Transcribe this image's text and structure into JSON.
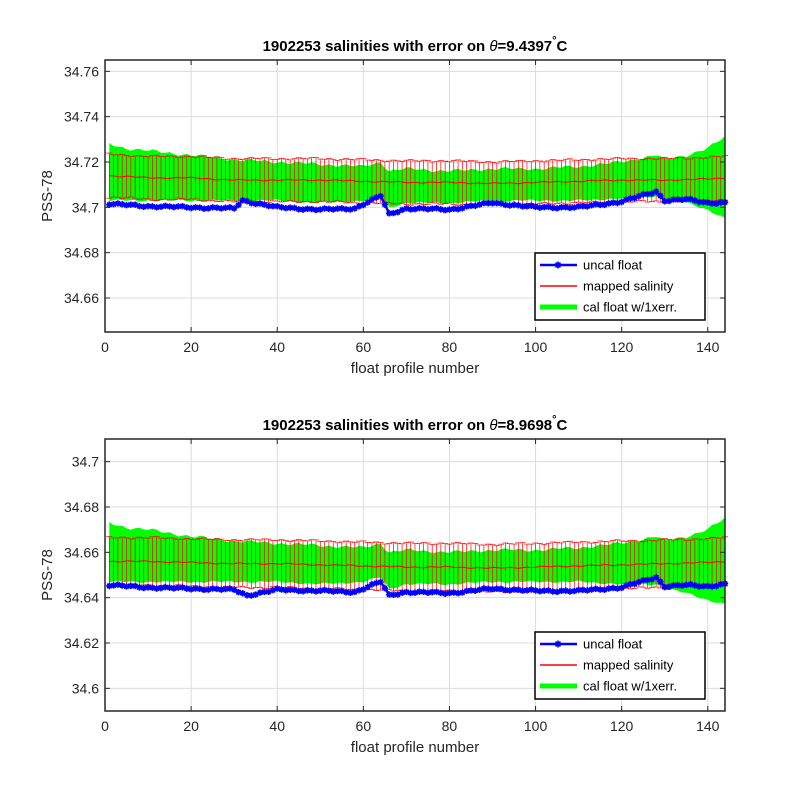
{
  "chart_data": [
    {
      "type": "line",
      "title_prefix": "1902253 salinities with error on ",
      "title_symbol": "θ",
      "title_value": "=9.4397",
      "title_degree": "°",
      "title_unit": "C",
      "xlabel": "float profile number",
      "ylabel": "PSS-78",
      "xlim": [
        0,
        144
      ],
      "ylim": [
        34.645,
        34.765
      ],
      "xticks": [
        0,
        20,
        40,
        60,
        80,
        100,
        120,
        140
      ],
      "yticks": [
        34.66,
        34.68,
        34.7,
        34.72,
        34.74,
        34.76
      ],
      "ytick_labels": [
        "34.66",
        "34.68",
        "34.7",
        "34.72",
        "34.74",
        "34.76"
      ],
      "grid": true,
      "legend_position": "lower-right",
      "legend": [
        {
          "label": "uncal float",
          "color": "#0000ff"
        },
        {
          "label": "mapped salinity",
          "color": "#ff0000"
        },
        {
          "label": "cal float w/1xerr.",
          "color": "#00ff00"
        }
      ],
      "series": [
        {
          "name": "uncal float",
          "color": "#0000ff",
          "x": [
            1,
            10,
            20,
            30,
            32,
            40,
            50,
            58,
            64,
            66,
            70,
            80,
            90,
            100,
            110,
            120,
            128,
            130,
            135,
            140,
            144
          ],
          "values": [
            34.7015,
            34.7005,
            34.7,
            34.6995,
            34.703,
            34.7,
            34.699,
            34.6995,
            34.705,
            34.697,
            34.6995,
            34.699,
            34.702,
            34.7,
            34.7,
            34.7025,
            34.707,
            34.703,
            34.7035,
            34.702,
            34.702
          ]
        },
        {
          "name": "mapped salinity",
          "color": "#ff0000",
          "x": [
            1,
            10,
            20,
            30,
            40,
            50,
            60,
            70,
            80,
            90,
            100,
            110,
            120,
            130,
            140,
            144
          ],
          "values": [
            34.714,
            34.713,
            34.713,
            34.712,
            34.712,
            34.712,
            34.7115,
            34.711,
            34.711,
            34.7105,
            34.711,
            34.7115,
            34.712,
            34.712,
            34.7125,
            34.713
          ],
          "error": 0.0095
        },
        {
          "name": "cal float w/1xerr.",
          "color": "#00ff00",
          "x": [
            1,
            5,
            10,
            20,
            30,
            40,
            50,
            60,
            64,
            66,
            70,
            80,
            90,
            100,
            110,
            120,
            128,
            130,
            135,
            140,
            144
          ],
          "upper": [
            34.728,
            34.726,
            34.725,
            34.723,
            34.721,
            34.72,
            34.719,
            34.718,
            34.72,
            34.716,
            34.717,
            34.716,
            34.717,
            34.717,
            34.718,
            34.72,
            34.723,
            34.721,
            34.723,
            34.726,
            34.731
          ],
          "lower": [
            34.703,
            34.703,
            34.703,
            34.703,
            34.703,
            34.703,
            34.702,
            34.703,
            34.705,
            34.7,
            34.702,
            34.702,
            34.703,
            34.703,
            34.703,
            34.704,
            34.705,
            34.703,
            34.702,
            34.699,
            34.695
          ]
        }
      ]
    },
    {
      "type": "line",
      "title_prefix": "1902253 salinities with error on ",
      "title_symbol": "θ",
      "title_value": "=8.9698",
      "title_degree": "°",
      "title_unit": "C",
      "xlabel": "float profile number",
      "ylabel": "PSS-78",
      "xlim": [
        0,
        144
      ],
      "ylim": [
        34.59,
        34.71
      ],
      "xticks": [
        0,
        20,
        40,
        60,
        80,
        100,
        120,
        140
      ],
      "yticks": [
        34.6,
        34.62,
        34.64,
        34.66,
        34.68,
        34.7
      ],
      "ytick_labels": [
        "34.6",
        "34.62",
        "34.64",
        "34.66",
        "34.68",
        "34.7"
      ],
      "grid": true,
      "legend_position": "lower-right",
      "legend": [
        {
          "label": "uncal float",
          "color": "#0000ff"
        },
        {
          "label": "mapped salinity",
          "color": "#ff0000"
        },
        {
          "label": "cal float w/1xerr.",
          "color": "#00ff00"
        }
      ],
      "series": [
        {
          "name": "uncal float",
          "color": "#0000ff",
          "x": [
            1,
            10,
            20,
            30,
            33,
            40,
            50,
            58,
            64,
            66,
            70,
            80,
            90,
            100,
            110,
            120,
            128,
            130,
            135,
            140,
            144
          ],
          "values": [
            34.6455,
            34.6445,
            34.644,
            34.6435,
            34.641,
            34.6435,
            34.643,
            34.6425,
            34.647,
            34.641,
            34.6425,
            34.642,
            34.644,
            34.643,
            34.643,
            34.6445,
            34.649,
            34.645,
            34.6455,
            34.645,
            34.646
          ]
        },
        {
          "name": "mapped salinity",
          "color": "#ff0000",
          "x": [
            1,
            10,
            20,
            30,
            40,
            50,
            60,
            70,
            80,
            90,
            100,
            110,
            120,
            130,
            140,
            144
          ],
          "values": [
            34.656,
            34.656,
            34.6555,
            34.655,
            34.655,
            34.6545,
            34.654,
            34.6535,
            34.6535,
            34.653,
            34.6535,
            34.654,
            34.6545,
            34.655,
            34.6555,
            34.656
          ],
          "error": 0.0105
        },
        {
          "name": "cal float w/1xerr.",
          "color": "#00ff00",
          "x": [
            1,
            5,
            10,
            20,
            30,
            40,
            50,
            60,
            64,
            66,
            70,
            80,
            90,
            100,
            110,
            120,
            128,
            130,
            135,
            140,
            144
          ],
          "upper": [
            34.673,
            34.671,
            34.67,
            34.667,
            34.665,
            34.664,
            34.663,
            34.662,
            34.664,
            34.66,
            34.661,
            34.66,
            34.661,
            34.661,
            34.662,
            34.664,
            34.667,
            34.665,
            34.667,
            34.67,
            34.675
          ],
          "lower": [
            34.647,
            34.647,
            34.647,
            34.647,
            34.647,
            34.647,
            34.646,
            34.647,
            34.649,
            34.644,
            34.646,
            34.646,
            34.647,
            34.647,
            34.647,
            34.646,
            34.646,
            34.644,
            34.642,
            34.639,
            34.637
          ]
        }
      ]
    }
  ]
}
